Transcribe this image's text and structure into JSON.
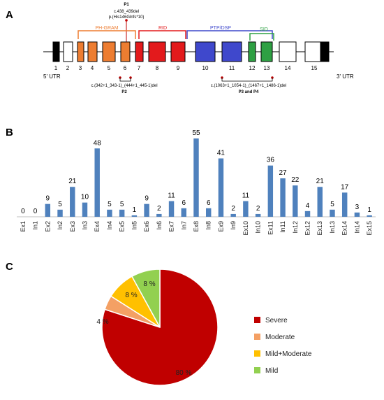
{
  "panels": {
    "a": "A",
    "b": "B",
    "c": "C"
  },
  "gene": {
    "exons": [
      "1",
      "2",
      "3",
      "4",
      "5",
      "6",
      "7",
      "8",
      "9",
      "10",
      "11",
      "12",
      "13",
      "14",
      "15"
    ],
    "utr5": "5' UTR",
    "utr3": "3' UTR",
    "domains": [
      {
        "label": "PH-GRAM",
        "color": "#ed7d31"
      },
      {
        "label": "RID",
        "color": "#e31a1c"
      },
      {
        "label": "PTP/DSP",
        "color": "#3f48cc"
      },
      {
        "label": "SID",
        "color": "#2ea043"
      }
    ],
    "p1": {
      "label": "P1",
      "line1": "c.438_439del",
      "line2": "p.(His146Glnfs*10)"
    },
    "p2": {
      "label": "P2",
      "text": "c.(342+1_343-1)_(444+1_445-1)del"
    },
    "p34": {
      "label": "P3 and P4",
      "text": "c.(1063+1_1054-1)_(1467+1_1486-1)del"
    }
  },
  "chart_data": [
    {
      "type": "bar",
      "categories": [
        "Ex1",
        "In1",
        "Ex2",
        "In2",
        "Ex3",
        "In3",
        "Ex4",
        "In4",
        "Ex5",
        "In5",
        "Ex6",
        "In6",
        "Ex7",
        "In7",
        "Ex8",
        "In8",
        "Ex9",
        "In9",
        "Ex10",
        "In10",
        "Ex11",
        "In11",
        "In12",
        "Ex12",
        "Ex13",
        "In13",
        "Ex14",
        "In14",
        "Ex15"
      ],
      "values": [
        0,
        0,
        9,
        5,
        21,
        10,
        48,
        5,
        5,
        1,
        9,
        2,
        11,
        6,
        55,
        6,
        41,
        2,
        11,
        2,
        36,
        27,
        22,
        4,
        21,
        5,
        17,
        3,
        1
      ],
      "color": "#4f81bd"
    },
    {
      "type": "pie",
      "labels": [
        "Severe",
        "Moderate",
        "Mild+Moderate",
        "Mild"
      ],
      "values": [
        80,
        4,
        8,
        8
      ],
      "value_labels": [
        "80 %",
        "4 %",
        "8 %",
        "8 %"
      ],
      "colors": [
        "#c00000",
        "#f4a064",
        "#ffc000",
        "#92d050"
      ],
      "legend": "right"
    }
  ]
}
